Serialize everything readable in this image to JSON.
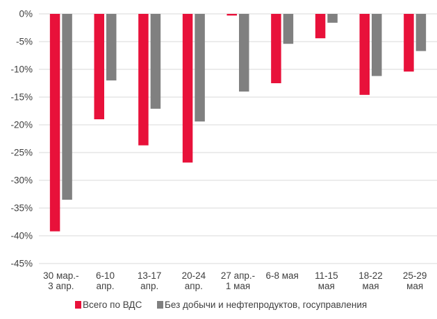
{
  "chart_data": {
    "type": "bar",
    "categories": [
      [
        "30 мар.-",
        "3 апр."
      ],
      [
        "6-10",
        "апр."
      ],
      [
        "13-17",
        "апр."
      ],
      [
        "20-24",
        "апр."
      ],
      [
        "27 апр.-",
        "1 мая"
      ],
      [
        "6-8 мая"
      ],
      [
        "11-15",
        "мая"
      ],
      [
        "18-22",
        "мая"
      ],
      [
        "25-29",
        "мая"
      ]
    ],
    "series": [
      {
        "name": "Всего по ВДС",
        "color": "#E8113A",
        "values": [
          -39.2,
          -19.0,
          -23.7,
          -26.8,
          -0.3,
          -12.5,
          -4.4,
          -14.6,
          -10.4
        ]
      },
      {
        "name": "Без добычи и нефтепродуктов, госуправления",
        "color": "#808080",
        "values": [
          -33.5,
          -12.0,
          -17.1,
          -19.4,
          -14.0,
          -5.4,
          -1.6,
          -11.2,
          -6.7
        ]
      }
    ],
    "yticks": [
      "0%",
      "-5%",
      "-10%",
      "-15%",
      "-20%",
      "-25%",
      "-30%",
      "-35%",
      "-40%",
      "-45%"
    ],
    "ylim": [
      -45,
      0
    ],
    "grid": true,
    "legend": "bottom"
  }
}
